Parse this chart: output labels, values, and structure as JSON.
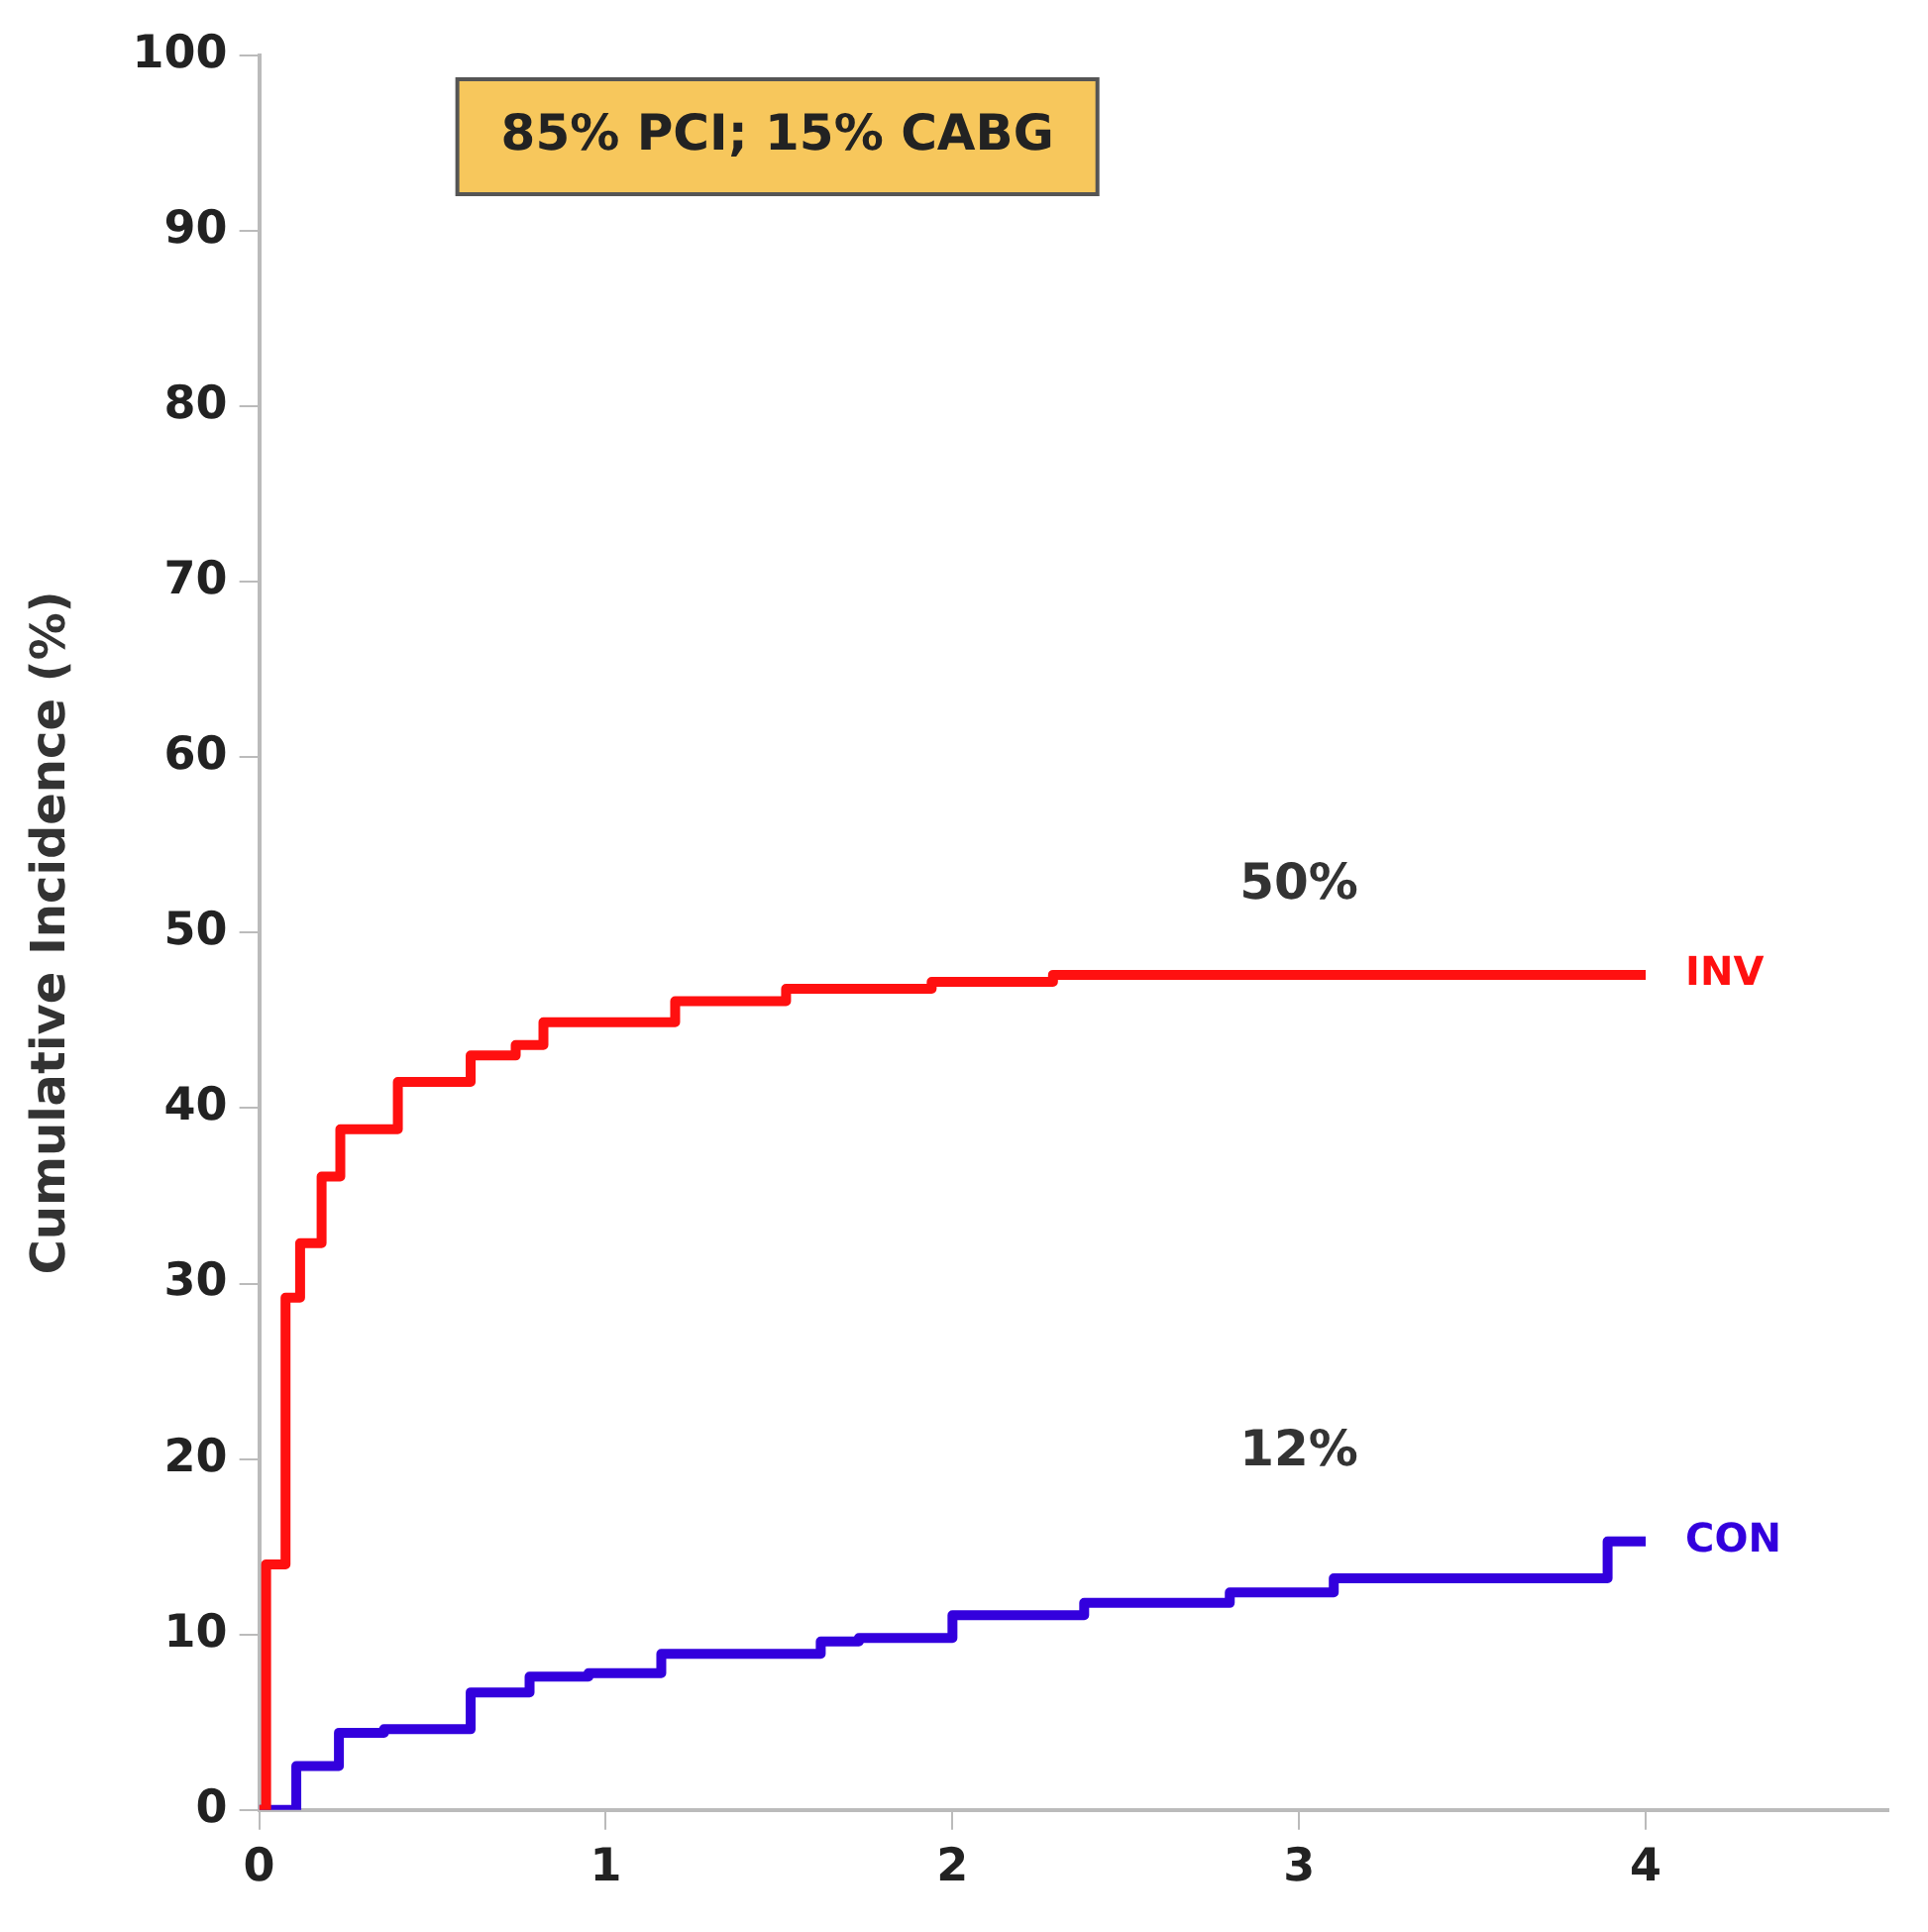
{
  "chart_data": {
    "type": "step",
    "ylabel": "Cumulative Incidence (%)",
    "xlim": [
      0,
      4.7
    ],
    "xticks": [
      0,
      1,
      2,
      3,
      4
    ],
    "ylim": [
      0,
      100
    ],
    "yticks": [
      0,
      10,
      20,
      30,
      40,
      50,
      60,
      70,
      80,
      90,
      100
    ],
    "grid": false,
    "legend": false,
    "annotations": [
      "85% PCI; 15% CABG",
      "50%",
      "12%"
    ],
    "series": [
      {
        "name": "INV",
        "color": "#ff1010",
        "x": [
          0,
          0.02,
          0.076,
          0.118,
          0.18,
          0.234,
          0.4,
          0.61,
          0.74,
          0.82,
          1.2,
          1.52,
          1.94,
          2.29,
          4.0
        ],
        "values": [
          0,
          14,
          29.2,
          32.3,
          36.1,
          38.8,
          41.5,
          43,
          43.6,
          44.9,
          46.1,
          46.8,
          47.2,
          47.6,
          47.6
        ]
      },
      {
        "name": "CON",
        "color": "#3300dd",
        "x": [
          0,
          0.107,
          0.23,
          0.36,
          0.61,
          0.78,
          0.95,
          1.16,
          1.62,
          1.73,
          2.0,
          2.38,
          2.8,
          3.1,
          3.89,
          4.0
        ],
        "values": [
          0,
          2.5,
          4.4,
          4.6,
          6.7,
          7.6,
          7.8,
          8.9,
          9.6,
          9.8,
          11.1,
          11.8,
          12.4,
          13.2,
          15.3,
          15.3
        ]
      }
    ]
  }
}
